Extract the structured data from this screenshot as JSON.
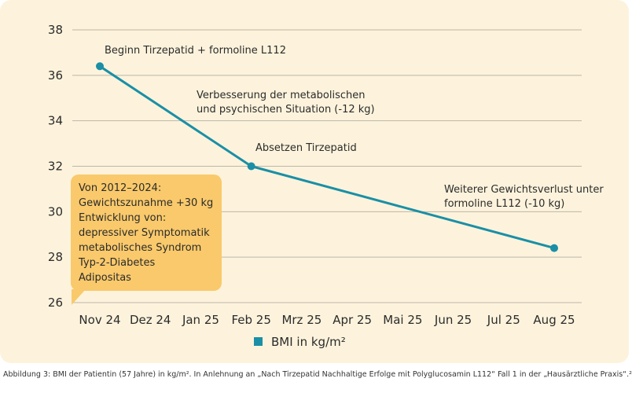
{
  "chart_data": {
    "type": "line",
    "categories": [
      "Nov 24",
      "Dez 24",
      "Jan 25",
      "Feb 25",
      "Mrz 25",
      "Apr 25",
      "Mai 25",
      "Jun 25",
      "Jul 25",
      "Aug 25"
    ],
    "series": [
      {
        "name": "BMI in kg/m²",
        "points": [
          {
            "x": "Nov 24",
            "y": 36.4
          },
          {
            "x": "Feb 25",
            "y": 32.0
          },
          {
            "x": "Aug 25",
            "y": 28.4
          }
        ]
      }
    ],
    "yticks": [
      26,
      28,
      30,
      32,
      34,
      36,
      38
    ],
    "ylim": [
      26,
      38
    ],
    "grid": true,
    "legend_position": "bottom-center",
    "line_color": "#1a8fa6",
    "annotations": [
      {
        "lines": [
          "Beginn Tirzepatid + formoline L112"
        ]
      },
      {
        "lines": [
          "Verbesserung der metabolischen",
          "und psychischen Situation (-12 kg)"
        ]
      },
      {
        "lines": [
          "Absetzen Tirzepatid"
        ]
      },
      {
        "lines": [
          "Weiterer Gewichtsverlust unter",
          "formoline L112 (-10 kg)"
        ]
      }
    ]
  },
  "callout": {
    "lines": [
      "Von 2012–2024:",
      "Gewichtszunahme +30 kg",
      "Entwicklung von:",
      "depressiver Symptomatik",
      "metabolisches Syndrom",
      "Typ-2-Diabetes",
      "Adipositas"
    ],
    "color": "#f9c96b"
  },
  "caption": "Abbildung 3: BMI der Patientin (57 Jahre) in kg/m². In Anlehnung an „Nach Tirzepatid Nachhaltige Erfolge mit Polyglucosamin L112“ Fall 1 in der „Hausärztliche Praxis“.²"
}
